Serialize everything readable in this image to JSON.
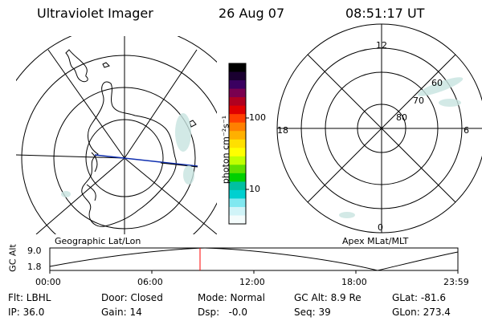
{
  "header": {
    "title": "Ultraviolet Imager",
    "date": "26 Aug 07",
    "time": "08:51:17 UT"
  },
  "left_map": {
    "label": "Geographic Lat/Lon"
  },
  "right_map": {
    "label": "Apex MLat/MLT",
    "mlt_labels": {
      "top": "12",
      "left": "18",
      "right": "6",
      "bottom": "0"
    },
    "lat_labels": [
      "60",
      "70",
      "80"
    ]
  },
  "colorbar": {
    "unit_label": "photon cm⁻²s⁻¹",
    "ticks": [
      "100",
      "10"
    ],
    "colors": [
      "#000000",
      "#1a0030",
      "#3a0060",
      "#7a0050",
      "#b00020",
      "#e00000",
      "#ff4000",
      "#ff8000",
      "#ffb000",
      "#ffe000",
      "#ffff00",
      "#c0ff00",
      "#60e000",
      "#00d000",
      "#00c0a0",
      "#00d0d0",
      "#80e8f0",
      "#d0f4f8",
      "#f4fcfc"
    ]
  },
  "altitude_plot": {
    "ylabel": "GC Alt",
    "y_ticks": [
      "9.0",
      "1.8"
    ],
    "x_ticks": [
      "00:00",
      "06:00",
      "12:00",
      "18:00",
      "23:59"
    ]
  },
  "info": {
    "filter": "Flt: LBHL",
    "ip": "IP: 36.0",
    "door": "Door: Closed",
    "gain": "Gain: 14",
    "mode": "Mode: Normal",
    "dsp": "Dsp:   -0.0",
    "gc_alt": "GC Alt: 8.9 Re",
    "seq": "Seq: 39",
    "glat": "GLat: -81.6",
    "glon": "GLon: 273.4"
  }
}
